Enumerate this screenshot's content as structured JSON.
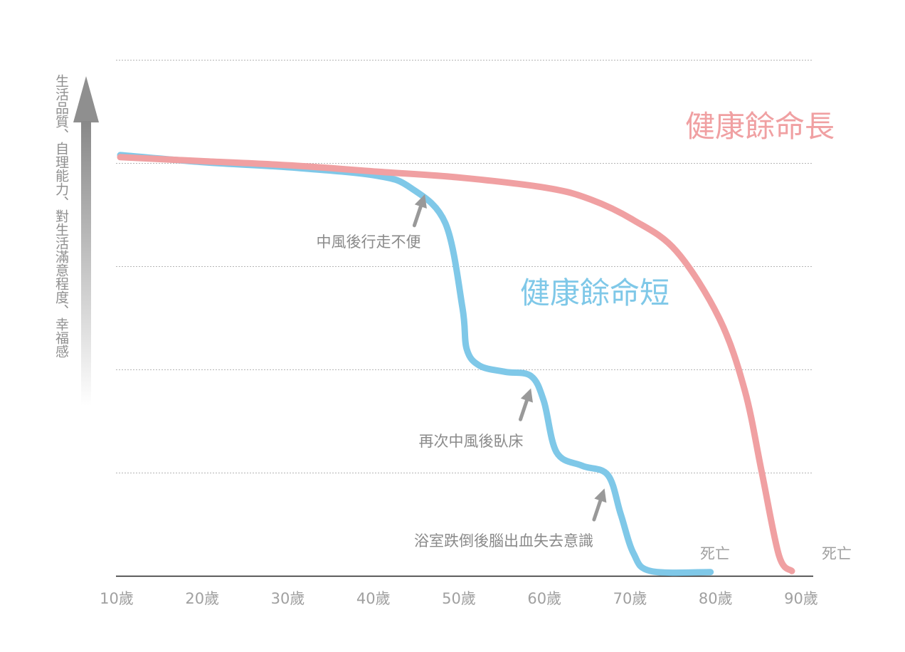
{
  "chart_data": {
    "type": "line",
    "ylabel": "生活品質、自理能力、對生活滿意程度、幸福感",
    "x_ticks": [
      "10歲",
      "20歲",
      "30歲",
      "40歲",
      "50歲",
      "60歲",
      "70歲",
      "80歲",
      "90歲"
    ],
    "xlim": [
      10,
      90
    ],
    "grid": true,
    "series": [
      {
        "name": "健康餘命長",
        "color": "#f0a0a2",
        "points": [
          [
            10,
            4.06
          ],
          [
            20,
            4.02
          ],
          [
            30,
            3.98
          ],
          [
            40,
            3.92
          ],
          [
            50,
            3.86
          ],
          [
            60,
            3.76
          ],
          [
            65,
            3.65
          ],
          [
            70,
            3.45
          ],
          [
            75,
            3.15
          ],
          [
            80,
            2.5
          ],
          [
            83,
            1.8
          ],
          [
            85,
            1.0
          ],
          [
            87,
            0.2
          ],
          [
            88.5,
            0.05
          ]
        ],
        "end_label": "死亡"
      },
      {
        "name": "健康餘命短",
        "color": "#7fc8e8",
        "points": [
          [
            10,
            4.08
          ],
          [
            20,
            4.01
          ],
          [
            30,
            3.96
          ],
          [
            40,
            3.88
          ],
          [
            44,
            3.76
          ],
          [
            48,
            3.42
          ],
          [
            50,
            2.6
          ],
          [
            50.5,
            2.2
          ],
          [
            52,
            2.04
          ],
          [
            55,
            1.98
          ],
          [
            58,
            1.94
          ],
          [
            59.5,
            1.7
          ],
          [
            61,
            1.2
          ],
          [
            64,
            1.07
          ],
          [
            67,
            0.98
          ],
          [
            68.5,
            0.6
          ],
          [
            70,
            0.22
          ],
          [
            72,
            0.05
          ],
          [
            79,
            0.04
          ]
        ],
        "end_label": "死亡"
      }
    ],
    "annotations": [
      {
        "text": "中風後行走不便",
        "x": 45.6,
        "y": 3.7
      },
      {
        "text": "再次中風後臥床",
        "x": 58,
        "y": 1.82
      },
      {
        "text": "浴室跌倒後腦出血失去意識",
        "x": 66.6,
        "y": 0.85
      }
    ],
    "colors": {
      "axis": "#222222",
      "grid": "#b5b5b5",
      "tick_text": "#a0a0a0",
      "annotation_text": "#8a8a8a",
      "arrow": "#999999"
    }
  }
}
